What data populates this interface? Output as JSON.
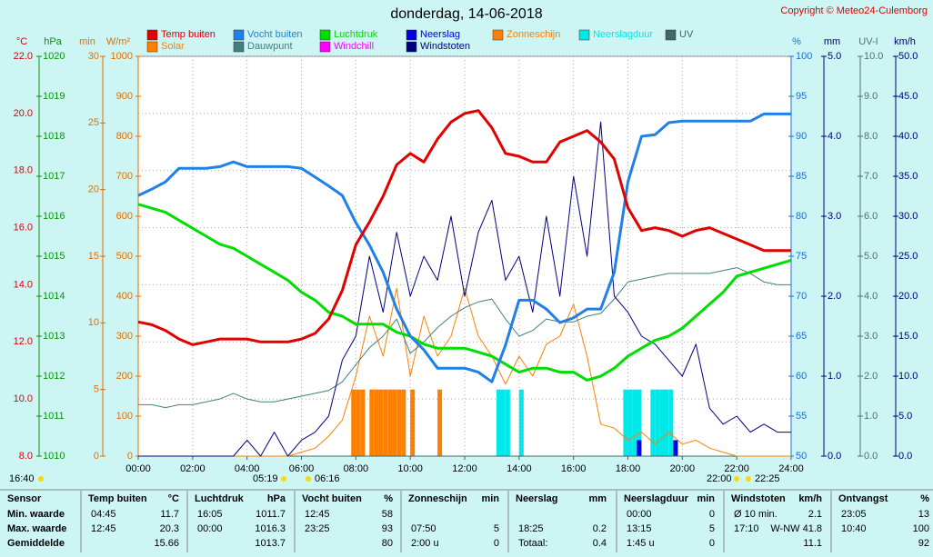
{
  "copyright": "Copyright © Meteo24-Culemborg",
  "chart_data": {
    "type": "line",
    "title": "donderdag, 14-06-2018",
    "grid": true,
    "x": [
      0,
      0.5,
      1,
      1.5,
      2,
      2.5,
      3,
      3.5,
      4,
      4.5,
      5,
      5.5,
      6,
      6.5,
      7,
      7.5,
      8,
      8.5,
      9,
      9.5,
      10,
      10.5,
      11,
      11.5,
      12,
      12.5,
      13,
      13.5,
      14,
      14.5,
      15,
      15.5,
      16,
      16.5,
      17,
      17.5,
      18,
      18.5,
      19,
      19.5,
      20,
      20.5,
      21,
      21.5,
      22,
      22.5,
      23,
      23.5,
      24
    ],
    "xlim": [
      0,
      24
    ],
    "xticks": [
      {
        "value": 0,
        "label": "00:00"
      },
      {
        "value": 2,
        "label": "02:00"
      },
      {
        "value": 4,
        "label": "04:00"
      },
      {
        "value": 6,
        "label": "06:00"
      },
      {
        "value": 8,
        "label": "08:00"
      },
      {
        "value": 10,
        "label": "10:00"
      },
      {
        "value": 12,
        "label": "12:00"
      },
      {
        "value": 14,
        "label": "14:00"
      },
      {
        "value": 16,
        "label": "16:00"
      },
      {
        "value": 18,
        "label": "18:00"
      },
      {
        "value": 20,
        "label": "20:00"
      },
      {
        "value": 22,
        "label": "22:00"
      },
      {
        "value": 24,
        "label": "24:00"
      }
    ],
    "ylabel": "°C",
    "ylim": [
      8,
      22
    ],
    "yticks": [
      {
        "value": 8,
        "label": "8.0"
      },
      {
        "value": 10,
        "label": "10.0"
      },
      {
        "value": 12,
        "label": "12.0"
      },
      {
        "value": 14,
        "label": "14.0"
      },
      {
        "value": 16,
        "label": "16.0"
      },
      {
        "value": 18,
        "label": "18.0"
      },
      {
        "value": 20,
        "label": "20.0"
      },
      {
        "value": 22,
        "label": "22.0"
      }
    ],
    "y2label": "hPa",
    "y2lim": [
      1010,
      1020
    ],
    "y2ticks": [
      1010,
      1011,
      1012,
      1013,
      1014,
      1015,
      1016,
      1017,
      1018,
      1019,
      1020
    ],
    "y3label": "min",
    "y3lim": [
      0,
      30
    ],
    "y3ticks": [
      0,
      5,
      10,
      15,
      20,
      25,
      30
    ],
    "y4label": "W/m²",
    "y4lim": [
      0,
      1000
    ],
    "y4ticks": [
      0,
      100,
      200,
      300,
      400,
      500,
      600,
      700,
      800,
      900,
      1000
    ],
    "y5label": "%",
    "y5lim": [
      50,
      100
    ],
    "y5ticks": [
      50,
      55,
      60,
      65,
      70,
      75,
      80,
      85,
      90,
      95,
      100
    ],
    "y6label": "mm",
    "y6lim": [
      0,
      5
    ],
    "y6ticks": [
      {
        "value": 0,
        "label": "0.0"
      },
      {
        "value": 1,
        "label": "1.0"
      },
      {
        "value": 2,
        "label": "2.0"
      },
      {
        "value": 3,
        "label": "3.0"
      },
      {
        "value": 4,
        "label": "4.0"
      },
      {
        "value": 5,
        "label": "5.0"
      }
    ],
    "y7label": "UV-I",
    "y7lim": [
      0,
      10
    ],
    "y7ticks": [
      {
        "value": 0,
        "label": "0.0"
      },
      {
        "value": 1,
        "label": "1.0"
      },
      {
        "value": 2,
        "label": "2.0"
      },
      {
        "value": 3,
        "label": "3.0"
      },
      {
        "value": 4,
        "label": "4.0"
      },
      {
        "value": 5,
        "label": "5.0"
      },
      {
        "value": 6,
        "label": "6.0"
      },
      {
        "value": 7,
        "label": "7.0"
      },
      {
        "value": 8,
        "label": "8.0"
      },
      {
        "value": 9,
        "label": "9.0"
      },
      {
        "value": 10,
        "label": "10.0"
      }
    ],
    "y8label": "km/h",
    "y8lim": [
      0,
      50
    ],
    "y8ticks": [
      {
        "value": 0,
        "label": "0.0"
      },
      {
        "value": 5,
        "label": "5.0"
      },
      {
        "value": 10,
        "label": "10.0"
      },
      {
        "value": 15,
        "label": "15.0"
      },
      {
        "value": 20,
        "label": "20.0"
      },
      {
        "value": 25,
        "label": "25.0"
      },
      {
        "value": 30,
        "label": "30.0"
      },
      {
        "value": 35,
        "label": "35.0"
      },
      {
        "value": 40,
        "label": "40.0"
      },
      {
        "value": 45,
        "label": "45.0"
      },
      {
        "value": 50,
        "label": "50.0"
      }
    ],
    "series": [
      {
        "name": "Temp buiten",
        "color": "#e00000",
        "axis": "y",
        "values": [
          12.7,
          12.6,
          12.4,
          12.1,
          11.9,
          12.0,
          12.1,
          12.1,
          12.1,
          12.0,
          12.0,
          12.0,
          12.1,
          12.3,
          12.8,
          13.8,
          15.4,
          16.2,
          17.1,
          18.2,
          18.6,
          18.3,
          19.1,
          19.7,
          20.0,
          20.1,
          19.5,
          18.6,
          18.5,
          18.3,
          18.3,
          19.0,
          19.2,
          19.4,
          19.0,
          18.4,
          16.7,
          15.9,
          16.0,
          15.9,
          15.7,
          15.9,
          16.0,
          15.8,
          15.6,
          15.4,
          15.2,
          15.2,
          15.2
        ]
      },
      {
        "name": "Vocht buiten",
        "color": "#1e80e8",
        "axis": "y5",
        "values": [
          82.6,
          83.4,
          84.3,
          86.0,
          86.0,
          86.0,
          86.2,
          86.8,
          86.2,
          86.2,
          86.2,
          86.2,
          86.0,
          84.9,
          83.8,
          82.6,
          79.2,
          76.4,
          73.0,
          68.4,
          65.0,
          63.3,
          61.0,
          61.0,
          61.0,
          60.5,
          59.3,
          63.9,
          69.5,
          69.5,
          68.4,
          66.7,
          67.3,
          68.4,
          68.4,
          73.0,
          84.3,
          90.0,
          90.2,
          91.7,
          91.9,
          91.9,
          91.9,
          91.9,
          91.9,
          91.9,
          92.8,
          92.8,
          92.8
        ]
      },
      {
        "name": "Luchtdruk",
        "color": "#00dd00",
        "axis": "y2",
        "values": [
          1016.3,
          1016.2,
          1016.1,
          1015.9,
          1015.7,
          1015.5,
          1015.3,
          1015.2,
          1015.0,
          1014.8,
          1014.6,
          1014.4,
          1014.1,
          1013.9,
          1013.6,
          1013.5,
          1013.3,
          1013.3,
          1013.3,
          1013.1,
          1013.0,
          1012.8,
          1012.7,
          1012.7,
          1012.7,
          1012.6,
          1012.5,
          1012.3,
          1012.1,
          1012.2,
          1012.2,
          1012.1,
          1012.1,
          1011.9,
          1012.0,
          1012.2,
          1012.5,
          1012.7,
          1012.9,
          1013.0,
          1013.2,
          1013.5,
          1013.8,
          1014.1,
          1014.5,
          1014.6,
          1014.7,
          1014.8,
          1014.9
        ]
      },
      {
        "name": "Neerslag",
        "color": "#0000e0",
        "axis": "y6",
        "type": "bar",
        "x": [
          18.33,
          19.67
        ],
        "values": [
          0.2,
          0.2
        ]
      },
      {
        "name": "Zonneschijn",
        "color": "#ff8000",
        "axis": "y3",
        "type": "bar",
        "x": [
          7.83,
          8.0,
          8.17,
          8.5,
          8.67,
          8.83,
          9.0,
          9.17,
          9.33,
          9.5,
          9.67,
          10.0,
          11.0
        ],
        "values": [
          5,
          5,
          5,
          5,
          5,
          5,
          5,
          5,
          5,
          5,
          5,
          5,
          5
        ]
      },
      {
        "name": "Neerslagduur",
        "color": "#00e8e8",
        "axis": "y3",
        "type": "bar",
        "x": [
          13.17,
          13.33,
          13.5,
          14.0,
          17.83,
          18.0,
          18.17,
          18.33,
          18.83,
          19.0,
          19.17,
          19.33,
          19.5
        ],
        "values": [
          5,
          5,
          5,
          5,
          5,
          5,
          5,
          5,
          5,
          5,
          5,
          5,
          5
        ]
      },
      {
        "name": "UV",
        "color": "#406868",
        "axis": "y7",
        "values": [
          0,
          0,
          0,
          0,
          0,
          0,
          0,
          0,
          0,
          0,
          0,
          0,
          0,
          0,
          0,
          0,
          0,
          0,
          0,
          0,
          0,
          0,
          0,
          0,
          0,
          0,
          0,
          0,
          0,
          0,
          0,
          0,
          0,
          0,
          0,
          0,
          0,
          0,
          0,
          0,
          0,
          0,
          0,
          0,
          0,
          0,
          0,
          0,
          0
        ]
      },
      {
        "name": "Solar",
        "color": "#ff8000",
        "axis": "y4",
        "values": [
          0,
          0,
          0,
          0,
          0,
          0,
          0,
          0,
          0,
          0,
          0,
          0,
          10,
          20,
          50,
          90,
          200,
          350,
          250,
          420,
          200,
          350,
          250,
          300,
          420,
          300,
          250,
          180,
          250,
          200,
          280,
          300,
          380,
          250,
          80,
          70,
          40,
          60,
          30,
          60,
          30,
          40,
          20,
          10,
          0,
          0,
          0,
          0,
          0
        ]
      },
      {
        "name": "Dauwpunt",
        "color": "#408080",
        "axis": "y",
        "values": [
          9.8,
          9.8,
          9.7,
          9.8,
          9.8,
          9.9,
          10.0,
          10.2,
          10.0,
          9.9,
          9.9,
          10.0,
          10.1,
          10.2,
          10.3,
          10.6,
          11.2,
          11.8,
          12.2,
          12.8,
          11.6,
          12.0,
          12.5,
          12.9,
          13.2,
          13.4,
          13.5,
          12.8,
          12.2,
          12.4,
          12.8,
          12.7,
          12.7,
          12.9,
          13.0,
          13.5,
          14.1,
          14.2,
          14.3,
          14.4,
          14.4,
          14.4,
          14.4,
          14.5,
          14.6,
          14.4,
          14.1,
          14.0,
          14.0
        ]
      },
      {
        "name": "Windchill",
        "color": "#ff00ff",
        "axis": "y",
        "values": [
          12.7,
          12.6,
          12.4,
          12.1,
          11.9,
          12.0,
          12.1,
          12.1,
          12.1,
          12.0,
          12.0,
          12.0,
          12.1,
          12.3,
          12.8,
          13.8,
          15.4,
          16.2,
          17.1,
          18.2,
          18.6,
          18.3,
          19.1,
          19.7,
          20.0,
          20.1,
          19.5,
          18.6,
          18.5,
          18.3,
          18.3,
          19.0,
          19.2,
          19.4,
          19.0,
          18.4,
          16.7,
          15.9,
          16.0,
          15.9,
          15.7,
          15.9,
          16.0,
          15.8,
          15.6,
          15.4,
          15.2,
          15.2,
          15.2
        ]
      },
      {
        "name": "Windstoten",
        "color": "#000080",
        "axis": "y8",
        "values": [
          0,
          0,
          0,
          0,
          0,
          0,
          0,
          0,
          2,
          0,
          3,
          0,
          2,
          3,
          5,
          12,
          15,
          25,
          18,
          28,
          20,
          25,
          22,
          30,
          20,
          28,
          32,
          22,
          25,
          18,
          30,
          20,
          35,
          25,
          41.8,
          20,
          18,
          15,
          14,
          12,
          10,
          14,
          6,
          4,
          5,
          3,
          4,
          3,
          3
        ]
      }
    ],
    "sun_times": [
      "16:40",
      "05:19",
      "06:16",
      "22:00",
      "22:25"
    ]
  },
  "table": {
    "header": [
      "Sensor",
      "Temp buiten",
      "°C",
      "Luchtdruk",
      "hPa",
      "Vocht buiten",
      "%",
      "Zonneschijn",
      "min",
      "Neerslag",
      "mm",
      "Neerslagduur",
      "min",
      "Windstoten",
      "km/h",
      "Ontvangst",
      "%"
    ],
    "rows": [
      [
        "Min. waarde",
        "04:45",
        "11.7",
        "16:05",
        "1011.7",
        "12:45",
        "58",
        null,
        null,
        null,
        null,
        "00:00",
        "0",
        "Ø 10 min.",
        "2.1",
        "23:05",
        "13"
      ],
      [
        "Max. waarde",
        "12:45",
        "20.3",
        "00:00",
        "1016.3",
        "23:25",
        "93",
        "07:50",
        "5",
        "18:25",
        "0.2",
        "13:15",
        "5",
        "17:10",
        "W-NW 41.8",
        "10:40",
        "100"
      ],
      [
        "Gemiddelde",
        null,
        "15.66",
        null,
        "1013.7",
        null,
        "80",
        "2:00 u",
        "0",
        "Totaal:",
        "0.4",
        "1:45 u",
        "0",
        null,
        "11.1",
        null,
        "92"
      ]
    ]
  }
}
